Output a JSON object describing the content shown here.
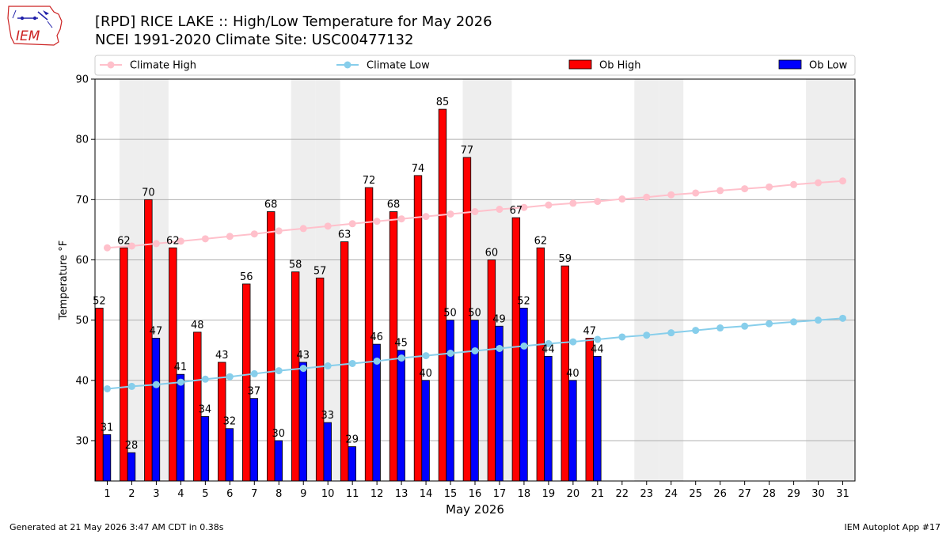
{
  "header": {
    "title_line1": "[RPD] RICE LAKE :: High/Low Temperature for May 2026",
    "title_line2": "NCEI 1991-2020 Climate Site: USC00477132",
    "logo_text": "IEM"
  },
  "footer": {
    "generated": "Generated at 21 May 2026 3:47 AM CDT in 0.38s",
    "app": "IEM Autoplot App #17"
  },
  "colors": {
    "ob_high": "#ff0000",
    "ob_low": "#0000ff",
    "climate_high": "#ffc0cb",
    "climate_low": "#87ceeb",
    "weekend_band": "#eeeeee",
    "grid": "#b0b0b0"
  },
  "chart_data": {
    "type": "bar",
    "xlabel": "May 2026",
    "ylabel": "Temperature °F",
    "ylim": [
      23.3,
      90
    ],
    "yticks": [
      30,
      40,
      50,
      60,
      70,
      80,
      90
    ],
    "grid": "horizontal",
    "legend_placement": "top",
    "legend": [
      "Climate High",
      "Climate Low",
      "Ob High",
      "Ob Low"
    ],
    "shaded_days": [
      2,
      3,
      9,
      10,
      16,
      17,
      23,
      24,
      30,
      31
    ],
    "categories": [
      "1",
      "2",
      "3",
      "4",
      "5",
      "6",
      "7",
      "8",
      "9",
      "10",
      "11",
      "12",
      "13",
      "14",
      "15",
      "16",
      "17",
      "18",
      "19",
      "20",
      "21",
      "22",
      "23",
      "24",
      "25",
      "26",
      "27",
      "28",
      "29",
      "30",
      "31"
    ],
    "series": [
      {
        "name": "Ob High",
        "kind": "bar",
        "values": [
          52,
          62,
          70,
          62,
          48,
          43,
          56,
          68,
          58,
          57,
          63,
          72,
          68,
          74,
          85,
          77,
          60,
          67,
          62,
          59,
          47,
          null,
          null,
          null,
          null,
          null,
          null,
          null,
          null,
          null,
          null
        ]
      },
      {
        "name": "Ob Low",
        "kind": "bar",
        "values": [
          31,
          28,
          47,
          41,
          34,
          32,
          37,
          30,
          43,
          33,
          29,
          46,
          45,
          40,
          50,
          50,
          49,
          52,
          44,
          40,
          44,
          null,
          null,
          null,
          null,
          null,
          null,
          null,
          null,
          null,
          null
        ]
      },
      {
        "name": "Climate High",
        "kind": "line",
        "values": [
          62.0,
          62.3,
          62.7,
          63.1,
          63.5,
          63.9,
          64.3,
          64.8,
          65.2,
          65.6,
          66.0,
          66.4,
          66.8,
          67.2,
          67.6,
          68.0,
          68.4,
          68.7,
          69.1,
          69.4,
          69.7,
          70.1,
          70.4,
          70.8,
          71.1,
          71.5,
          71.8,
          72.1,
          72.5,
          72.8,
          73.1
        ]
      },
      {
        "name": "Climate Low",
        "kind": "line",
        "values": [
          38.6,
          39.0,
          39.3,
          39.7,
          40.2,
          40.6,
          41.1,
          41.6,
          42.0,
          42.4,
          42.8,
          43.2,
          43.7,
          44.1,
          44.5,
          44.9,
          45.3,
          45.7,
          46.1,
          46.4,
          46.8,
          47.2,
          47.5,
          47.9,
          48.3,
          48.7,
          49.0,
          49.4,
          49.7,
          50.0,
          50.3
        ]
      }
    ]
  }
}
